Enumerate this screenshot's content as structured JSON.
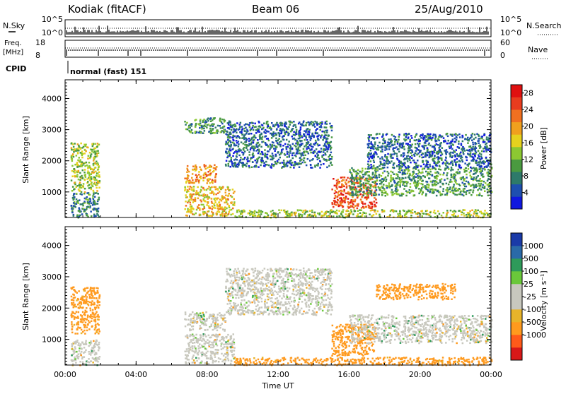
{
  "header": {
    "station": "Kodiak (fitACF)",
    "beam": "Beam 06",
    "date": "25/Aug/2010"
  },
  "summary": {
    "nsky_label": "N.Sky",
    "nsky_ticks": [
      "10^5",
      "10^0"
    ],
    "nsearch_label": "N.Search",
    "nsearch_ticks": [
      "10^5",
      "10^0"
    ],
    "freq_label": "Freq.",
    "freq_unit": "[MHz]",
    "freq_ticks": [
      "18",
      "8"
    ],
    "nave_label": "Nave",
    "nave_ticks": [
      "60",
      "0"
    ],
    "cpid_label": "CPID",
    "cpid_value": "normal (fast) 151"
  },
  "colors": {
    "power_scale": [
      "#1018e0",
      "#1e4fb0",
      "#2e7a6a",
      "#4a9a40",
      "#8cc832",
      "#e6d21e",
      "#f0a01e",
      "#f07020",
      "#e83c1e",
      "#e01010"
    ],
    "velocity_scale": [
      "#d81818",
      "#ff5a1a",
      "#ff9a1e",
      "#e8b42a",
      "#c8c8be",
      "#c8c8be",
      "#6ac83a",
      "#2e9a5a",
      "#2a6aa8",
      "#1a3aa8"
    ],
    "velocity_ground": "#c8c8be"
  },
  "chart_data": [
    {
      "type": "heatmap",
      "panel": "power",
      "title": "",
      "xlabel": "Time UT",
      "ylabel": "Slant Range [km]",
      "x_ticks": [
        "00:00",
        "04:00",
        "08:00",
        "12:00",
        "16:00",
        "20:00",
        "00:00"
      ],
      "xlim_hours": [
        0,
        24
      ],
      "y_ticks": [
        "1000",
        "2000",
        "3000",
        "4000"
      ],
      "ylim": [
        180,
        4600
      ],
      "colorbar_label": "Power [dB]",
      "colorbar_ticks": [
        "4",
        "8",
        "12",
        "16",
        "20",
        "24",
        "28"
      ],
      "colorbar_range": [
        0,
        30
      ],
      "regions": [
        {
          "t": [
            0.3,
            1.9
          ],
          "r": [
            1000,
            2600
          ],
          "v": 14
        },
        {
          "t": [
            0.3,
            1.9
          ],
          "r": [
            200,
            1000
          ],
          "v": 8
        },
        {
          "t": [
            6.7,
            9.5
          ],
          "r": [
            250,
            1200
          ],
          "v": 18
        },
        {
          "t": [
            6.7,
            8.5
          ],
          "r": [
            1300,
            1900
          ],
          "v": 20
        },
        {
          "t": [
            6.7,
            9.0
          ],
          "r": [
            2900,
            3400
          ],
          "v": 10
        },
        {
          "t": [
            9.0,
            15.0
          ],
          "r": [
            1800,
            3300
          ],
          "v": 6
        },
        {
          "t": [
            9.5,
            24.0
          ],
          "r": [
            200,
            450
          ],
          "v": 14
        },
        {
          "t": [
            15.0,
            17.5
          ],
          "r": [
            500,
            1500
          ],
          "v": 24
        },
        {
          "t": [
            16.0,
            24.0
          ],
          "r": [
            900,
            1800
          ],
          "v": 10
        },
        {
          "t": [
            17.0,
            24.0
          ],
          "r": [
            1800,
            2900
          ],
          "v": 6
        }
      ]
    },
    {
      "type": "heatmap",
      "panel": "velocity",
      "title": "",
      "xlabel": "Time UT",
      "ylabel": "Slant Range [km]",
      "x_ticks": [
        "00:00",
        "04:00",
        "08:00",
        "12:00",
        "16:00",
        "20:00",
        "00:00"
      ],
      "xlim_hours": [
        0,
        24
      ],
      "y_ticks": [
        "1000",
        "2000",
        "3000",
        "4000"
      ],
      "ylim": [
        180,
        4600
      ],
      "colorbar_label": "Velocity [m s⁻¹]",
      "colorbar_ticks": [
        "1000",
        "500",
        "100",
        "25",
        "-25",
        "-100",
        "-500",
        "-1000"
      ],
      "colorbar_range": [
        -1000,
        1000
      ],
      "regions": [
        {
          "t": [
            0.3,
            1.9
          ],
          "r": [
            1200,
            2700
          ],
          "v": -200
        },
        {
          "t": [
            0.3,
            1.9
          ],
          "r": [
            200,
            1000
          ],
          "v": 0
        },
        {
          "t": [
            6.7,
            9.5
          ],
          "r": [
            250,
            1200
          ],
          "v": 0
        },
        {
          "t": [
            6.7,
            9.0
          ],
          "r": [
            1300,
            1900
          ],
          "v": 0
        },
        {
          "t": [
            9.0,
            15.0
          ],
          "r": [
            1800,
            3300
          ],
          "v": 0
        },
        {
          "t": [
            9.5,
            24.0
          ],
          "r": [
            200,
            450
          ],
          "v": -150
        },
        {
          "t": [
            15.0,
            17.5
          ],
          "r": [
            500,
            1500
          ],
          "v": -350
        },
        {
          "t": [
            17.5,
            22.0
          ],
          "r": [
            2300,
            2800
          ],
          "v": -350
        },
        {
          "t": [
            16.0,
            24.0
          ],
          "r": [
            900,
            1800
          ],
          "v": 0
        }
      ]
    }
  ]
}
